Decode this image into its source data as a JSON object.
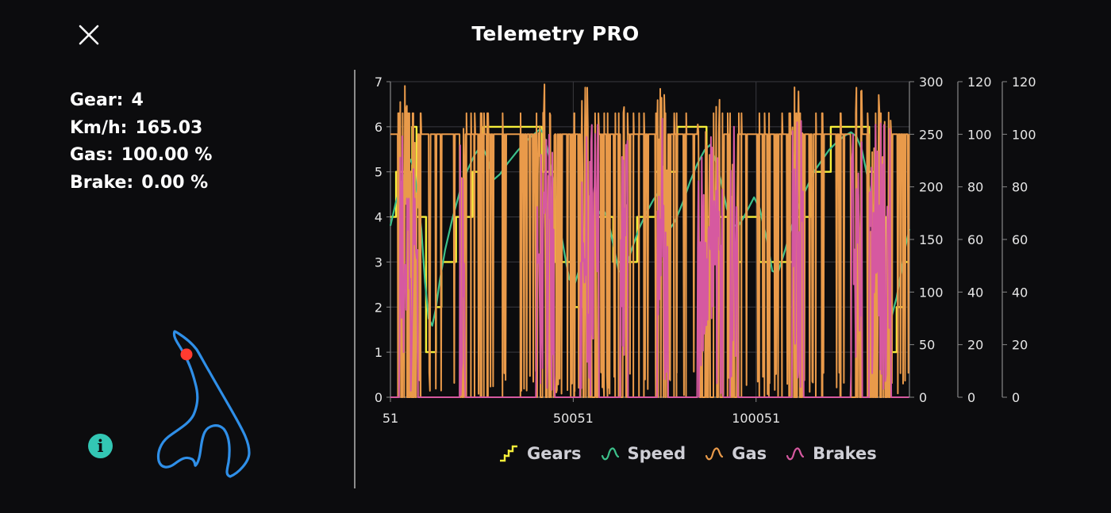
{
  "header": {
    "title": "Telemetry PRO"
  },
  "readout": {
    "gear_label": "Gear:",
    "gear_value": "4",
    "speed_label": "Km/h:",
    "speed_value": "165.03",
    "gas_label": "Gas:",
    "gas_value": "100.00 %",
    "brake_label": "Brake:",
    "brake_value": "0.00 %"
  },
  "info": {
    "glyph": "i"
  },
  "colors": {
    "gears": "#f5ee3a",
    "speed": "#3cc08a",
    "gas": "#e99a4a",
    "brakes": "#d659a0",
    "track": "#2f8fe8",
    "car_marker": "#ff3b30",
    "info": "#33c7b4"
  },
  "legend": [
    {
      "key": "gears",
      "label": "Gears",
      "icon": "gears-step-icon"
    },
    {
      "key": "speed",
      "label": "Speed",
      "icon": "speed-wave-icon"
    },
    {
      "key": "gas",
      "label": "Gas",
      "icon": "gas-wave-icon"
    },
    {
      "key": "brakes",
      "label": "Brakes",
      "icon": "brakes-wave-icon"
    }
  ],
  "chart_data": {
    "type": "line",
    "x_range": [
      51,
      142000
    ],
    "x_ticks": [
      "51",
      "50051",
      "100051"
    ],
    "x_tick_values": [
      51,
      50051,
      100051
    ],
    "grid": true,
    "legend_position": "bottom",
    "axes": [
      {
        "key": "gears",
        "range": [
          0,
          7
        ],
        "ticks": [
          "0",
          "1",
          "2",
          "3",
          "4",
          "5",
          "6",
          "7"
        ]
      },
      {
        "key": "speed",
        "range": [
          0,
          300
        ],
        "ticks": [
          "0",
          "50",
          "100",
          "150",
          "200",
          "250",
          "300"
        ]
      },
      {
        "key": "gas",
        "range": [
          0,
          120
        ],
        "ticks": [
          "0",
          "20",
          "40",
          "60",
          "80",
          "100",
          "120"
        ]
      },
      {
        "key": "brakes",
        "range": [
          0,
          120
        ],
        "ticks": [
          "0",
          "20",
          "40",
          "60",
          "80",
          "100",
          "120"
        ]
      }
    ],
    "series": [
      {
        "name": "Gears",
        "key": "gears",
        "axis": 0,
        "points": [
          [
            51,
            4
          ],
          [
            1500,
            4
          ],
          [
            1600,
            5
          ],
          [
            5500,
            5
          ],
          [
            6000,
            6
          ],
          [
            7000,
            6
          ],
          [
            7200,
            4
          ],
          [
            9500,
            4
          ],
          [
            9800,
            1
          ],
          [
            12000,
            1
          ],
          [
            12500,
            2
          ],
          [
            13500,
            2
          ],
          [
            14000,
            3
          ],
          [
            17500,
            3
          ],
          [
            18000,
            4
          ],
          [
            22000,
            4
          ],
          [
            22500,
            5
          ],
          [
            25000,
            5
          ],
          [
            25500,
            6
          ],
          [
            41000,
            6
          ],
          [
            41500,
            5
          ],
          [
            44500,
            5
          ],
          [
            45000,
            3
          ],
          [
            50000,
            3
          ],
          [
            50500,
            2
          ],
          [
            52000,
            2
          ],
          [
            52500,
            3
          ],
          [
            54500,
            3
          ],
          [
            55000,
            4
          ],
          [
            60500,
            4
          ],
          [
            61000,
            3
          ],
          [
            67000,
            3
          ],
          [
            67500,
            4
          ],
          [
            72000,
            4
          ],
          [
            72500,
            5
          ],
          [
            78000,
            5
          ],
          [
            78500,
            6
          ],
          [
            86000,
            6
          ],
          [
            86500,
            4
          ],
          [
            92000,
            4
          ],
          [
            92500,
            3
          ],
          [
            95500,
            3
          ],
          [
            96000,
            4
          ],
          [
            100500,
            4
          ],
          [
            101000,
            3
          ],
          [
            110000,
            3
          ],
          [
            110500,
            4
          ],
          [
            114500,
            4
          ],
          [
            115000,
            5
          ],
          [
            120000,
            5
          ],
          [
            120500,
            6
          ],
          [
            130500,
            6
          ],
          [
            131000,
            5
          ],
          [
            133000,
            5
          ],
          [
            133500,
            4
          ],
          [
            135000,
            4
          ],
          [
            135500,
            1
          ],
          [
            138000,
            1
          ],
          [
            138500,
            2
          ],
          [
            140000,
            2
          ],
          [
            140500,
            3
          ],
          [
            142000,
            3
          ]
        ]
      },
      {
        "name": "Speed",
        "key": "speed",
        "axis": 1,
        "points": [
          [
            51,
            163
          ],
          [
            1500,
            185
          ],
          [
            3500,
            208
          ],
          [
            5500,
            226
          ],
          [
            6500,
            218
          ],
          [
            7500,
            190
          ],
          [
            8500,
            160
          ],
          [
            9500,
            110
          ],
          [
            10500,
            75
          ],
          [
            11500,
            68
          ],
          [
            12500,
            85
          ],
          [
            13500,
            110
          ],
          [
            15000,
            140
          ],
          [
            17000,
            170
          ],
          [
            19000,
            195
          ],
          [
            21000,
            215
          ],
          [
            23000,
            230
          ],
          [
            25000,
            240
          ],
          [
            26500,
            228
          ],
          [
            28000,
            206
          ],
          [
            30000,
            212
          ],
          [
            32000,
            222
          ],
          [
            35000,
            235
          ],
          [
            38000,
            246
          ],
          [
            41000,
            255
          ],
          [
            42000,
            250
          ],
          [
            43500,
            228
          ],
          [
            45000,
            195
          ],
          [
            46500,
            160
          ],
          [
            48000,
            130
          ],
          [
            49000,
            112
          ],
          [
            50500,
            108
          ],
          [
            52000,
            125
          ],
          [
            54000,
            148
          ],
          [
            56000,
            168
          ],
          [
            58000,
            180
          ],
          [
            59500,
            170
          ],
          [
            61000,
            145
          ],
          [
            62500,
            120
          ],
          [
            64000,
            118
          ],
          [
            66000,
            140
          ],
          [
            68000,
            160
          ],
          [
            70000,
            175
          ],
          [
            72000,
            188
          ],
          [
            73500,
            195
          ],
          [
            75000,
            180
          ],
          [
            76500,
            160
          ],
          [
            78000,
            168
          ],
          [
            80000,
            185
          ],
          [
            82000,
            205
          ],
          [
            84000,
            222
          ],
          [
            86000,
            235
          ],
          [
            87500,
            240
          ],
          [
            89000,
            225
          ],
          [
            90500,
            205
          ],
          [
            92000,
            180
          ],
          [
            93500,
            165
          ],
          [
            95000,
            162
          ],
          [
            96500,
            170
          ],
          [
            98000,
            180
          ],
          [
            99500,
            190
          ],
          [
            101000,
            180
          ],
          [
            103000,
            150
          ],
          [
            104500,
            120
          ],
          [
            106000,
            118
          ],
          [
            108000,
            140
          ],
          [
            110000,
            165
          ],
          [
            112000,
            185
          ],
          [
            114000,
            200
          ],
          [
            116000,
            215
          ],
          [
            118000,
            225
          ],
          [
            120000,
            235
          ],
          [
            122000,
            242
          ],
          [
            124000,
            248
          ],
          [
            126000,
            252
          ],
          [
            127500,
            248
          ],
          [
            129000,
            235
          ],
          [
            130500,
            210
          ],
          [
            132000,
            180
          ],
          [
            133500,
            140
          ],
          [
            135000,
            90
          ],
          [
            136000,
            70
          ],
          [
            137000,
            75
          ],
          [
            138500,
            95
          ],
          [
            140000,
            125
          ],
          [
            141000,
            145
          ],
          [
            142000,
            160
          ]
        ]
      },
      {
        "name": "Gas",
        "key": "gas",
        "axis": 2,
        "points": []
      },
      {
        "name": "Brakes",
        "key": "brakes",
        "axis": 3,
        "points": []
      }
    ]
  }
}
